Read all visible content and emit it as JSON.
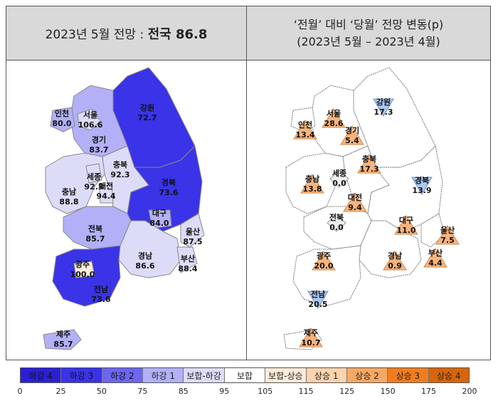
{
  "header": {
    "left_prefix": "2023년 5월 전망 :",
    "left_bold": "전국 86.8",
    "right_line1": "‘전월’ 대비 ‘당월’ 전망 변동(p)",
    "right_line2": "(2023년 5월 – 2023년 4월)"
  },
  "left_map": {
    "regions": [
      {
        "name": "인천",
        "value": "80.0"
      },
      {
        "name": "서울",
        "value": "106.6"
      },
      {
        "name": "강원",
        "value": "72.7"
      },
      {
        "name": "경기",
        "value": "83.7"
      },
      {
        "name": "충북",
        "value": "92.3"
      },
      {
        "name": "세종",
        "value": "92.3"
      },
      {
        "name": "대전",
        "value": "94.4"
      },
      {
        "name": "충남",
        "value": "88.8"
      },
      {
        "name": "경북",
        "value": "73.6"
      },
      {
        "name": "대구",
        "value": "84.0"
      },
      {
        "name": "전북",
        "value": "85.7"
      },
      {
        "name": "울산",
        "value": "87.5"
      },
      {
        "name": "광주",
        "value": "100.0"
      },
      {
        "name": "경남",
        "value": "86.6"
      },
      {
        "name": "부산",
        "value": "88.4"
      },
      {
        "name": "전남",
        "value": "73.6"
      },
      {
        "name": "제주",
        "value": "85.7"
      }
    ]
  },
  "right_map": {
    "regions": [
      {
        "name": "강원",
        "value": "17.3",
        "dir": "down"
      },
      {
        "name": "서울",
        "value": "28.6",
        "dir": "up"
      },
      {
        "name": "인천",
        "value": "13.4",
        "dir": "up"
      },
      {
        "name": "경기",
        "value": "5.4",
        "dir": "up"
      },
      {
        "name": "충북",
        "value": "17.3",
        "dir": "up"
      },
      {
        "name": "세종",
        "value": "0.0",
        "dir": "flat"
      },
      {
        "name": "충남",
        "value": "13.8",
        "dir": "up"
      },
      {
        "name": "대전",
        "value": "9.4",
        "dir": "up"
      },
      {
        "name": "경북",
        "value": "13.9",
        "dir": "down"
      },
      {
        "name": "전북",
        "value": "0.0",
        "dir": "flat"
      },
      {
        "name": "대구",
        "value": "11.0",
        "dir": "up"
      },
      {
        "name": "울산",
        "value": "7.5",
        "dir": "up"
      },
      {
        "name": "광주",
        "value": "20.0",
        "dir": "up"
      },
      {
        "name": "경남",
        "value": "0.9",
        "dir": "up"
      },
      {
        "name": "부산",
        "value": "4.4",
        "dir": "up"
      },
      {
        "name": "전남",
        "value": "20.5",
        "dir": "down"
      },
      {
        "name": "제주",
        "value": "10.7",
        "dir": "up"
      }
    ]
  },
  "legend": {
    "items": [
      {
        "label": "하강 4",
        "color": "#2b1fd6"
      },
      {
        "label": "하강 3",
        "color": "#3a33e8"
      },
      {
        "label": "하강 2",
        "color": "#6c66f0"
      },
      {
        "label": "하강 1",
        "color": "#b3b0f7"
      },
      {
        "label": "보합-하강",
        "color": "#dddcf8"
      },
      {
        "label": "보합",
        "color": "#ffffff"
      },
      {
        "label": "보합-상승",
        "color": "#fcebd9"
      },
      {
        "label": "상승 1",
        "color": "#fbd3ac"
      },
      {
        "label": "상승 2",
        "color": "#f7a864"
      },
      {
        "label": "상승 3",
        "color": "#ef7d1f"
      },
      {
        "label": "상승 4",
        "color": "#d8650b"
      }
    ],
    "ticks": [
      "0",
      "25",
      "50",
      "75",
      "85",
      "95",
      "105",
      "115",
      "125",
      "150",
      "175",
      "200"
    ]
  },
  "colors": {
    "down_marker": "#a9c7f2",
    "up_marker": "#f8b47c",
    "flat_marker": "#eeeeee"
  }
}
